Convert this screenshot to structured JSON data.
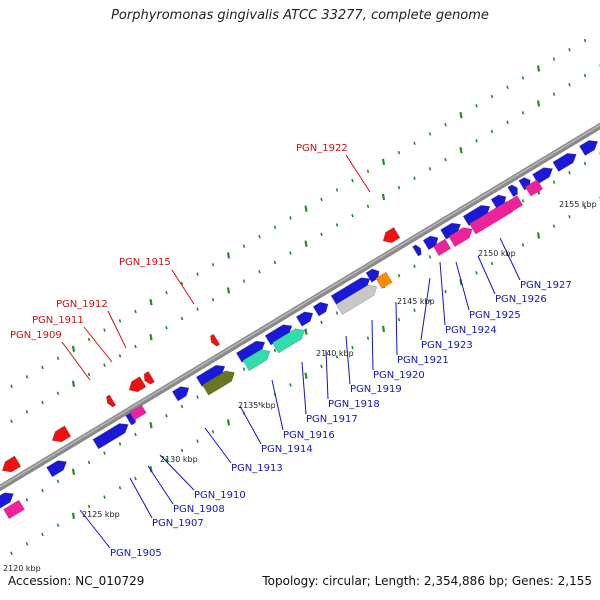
{
  "title": "Porphyromonas gingivalis ATCC 33277, complete genome",
  "footer": {
    "accession": "Accession: NC_010729",
    "topology": "Topology: circular; Length: 2,354,886 bp; Genes: 2,155"
  },
  "colors": {
    "forward_gene": "#1a1ad6",
    "reverse_gene": "#ee1111",
    "rna": "#ee2299",
    "highlight_green": "#33ddaa",
    "olive": "#667722",
    "gray_gene": "#c8c8c8",
    "orange_gene": "#ff8a00",
    "backbone": "#8a8a8a",
    "tick": "#2a8a2a",
    "blue_label": "#1515b8",
    "red_label": "#cc1111"
  },
  "ruler": {
    "ticks": [
      "2120 kbp",
      "2125 kbp",
      "2130 kbp",
      "2135 kbp",
      "2140 kbp",
      "2145 kbp",
      "2150 kbp",
      "2155 kbp"
    ]
  },
  "forward_labels": [
    "PGN_1905",
    "PGN_1907",
    "PGN_1908",
    "PGN_1910",
    "PGN_1913",
    "PGN_1914",
    "PGN_1916",
    "PGN_1917",
    "PGN_1918",
    "PGN_1919",
    "PGN_1920",
    "PGN_1921",
    "PGN_1923",
    "PGN_1924",
    "PGN_1925",
    "PGN_1926",
    "PGN_1927"
  ],
  "reverse_labels": [
    "PGN_1909",
    "PGN_1911",
    "PGN_1912",
    "PGN_1915",
    "PGN_1922"
  ]
}
